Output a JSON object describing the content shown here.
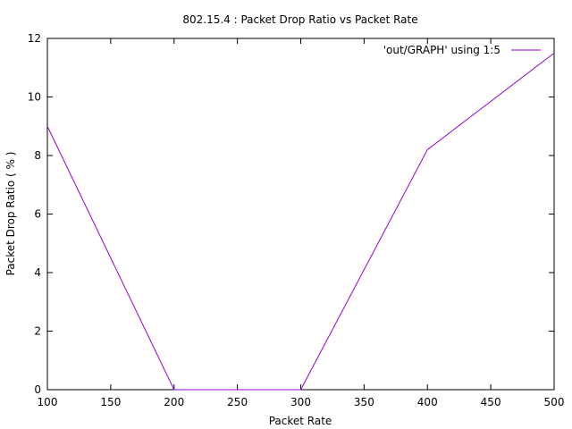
{
  "chart_data": {
    "type": "line",
    "title": "802.15.4 : Packet Drop Ratio vs Packet Rate",
    "xlabel": "Packet Rate",
    "ylabel": "Packet Drop Ratio ( % )",
    "xlim": [
      100,
      500
    ],
    "ylim": [
      0,
      12
    ],
    "xticks": [
      100,
      150,
      200,
      250,
      300,
      350,
      400,
      450,
      500
    ],
    "yticks": [
      0,
      2,
      4,
      6,
      8,
      10,
      12
    ],
    "grid": false,
    "legend_position": "top-right",
    "series": [
      {
        "name": "'out/GRAPH' using 1:5",
        "color": "#9400d3",
        "x": [
          100,
          200,
          300,
          400,
          500
        ],
        "y": [
          9.0,
          0.0,
          0.0,
          8.2,
          11.5
        ]
      }
    ]
  }
}
